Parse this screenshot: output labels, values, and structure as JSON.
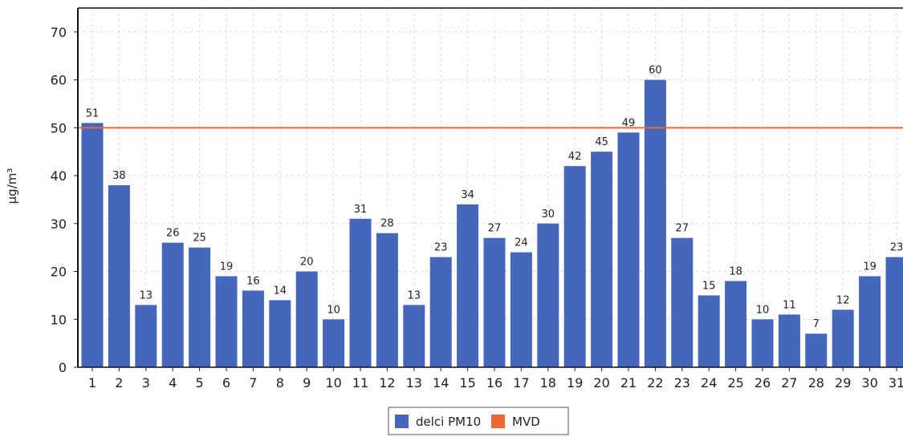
{
  "chart_data": {
    "type": "bar",
    "title": "",
    "xlabel": "",
    "ylabel": "µg/m³",
    "ylim": [
      0,
      75
    ],
    "yticks": [
      0,
      10,
      20,
      30,
      40,
      50,
      60,
      70
    ],
    "grid": true,
    "legend_position": "bottom",
    "categories": [
      "1",
      "2",
      "3",
      "4",
      "5",
      "6",
      "7",
      "8",
      "9",
      "10",
      "11",
      "12",
      "13",
      "14",
      "15",
      "16",
      "17",
      "18",
      "19",
      "20",
      "21",
      "22",
      "23",
      "24",
      "25",
      "26",
      "27",
      "28",
      "29",
      "30",
      "31"
    ],
    "series": [
      {
        "name": "delci PM10",
        "color": "#4466bb",
        "values": [
          51,
          38,
          13,
          26,
          25,
          19,
          16,
          14,
          20,
          10,
          31,
          28,
          13,
          23,
          34,
          27,
          24,
          30,
          42,
          45,
          49,
          60,
          27,
          15,
          18,
          10,
          11,
          7,
          12,
          19,
          23
        ]
      }
    ],
    "reference_lines": [
      {
        "name": "MVD",
        "value": 50,
        "color": "#ee6633"
      }
    ]
  }
}
